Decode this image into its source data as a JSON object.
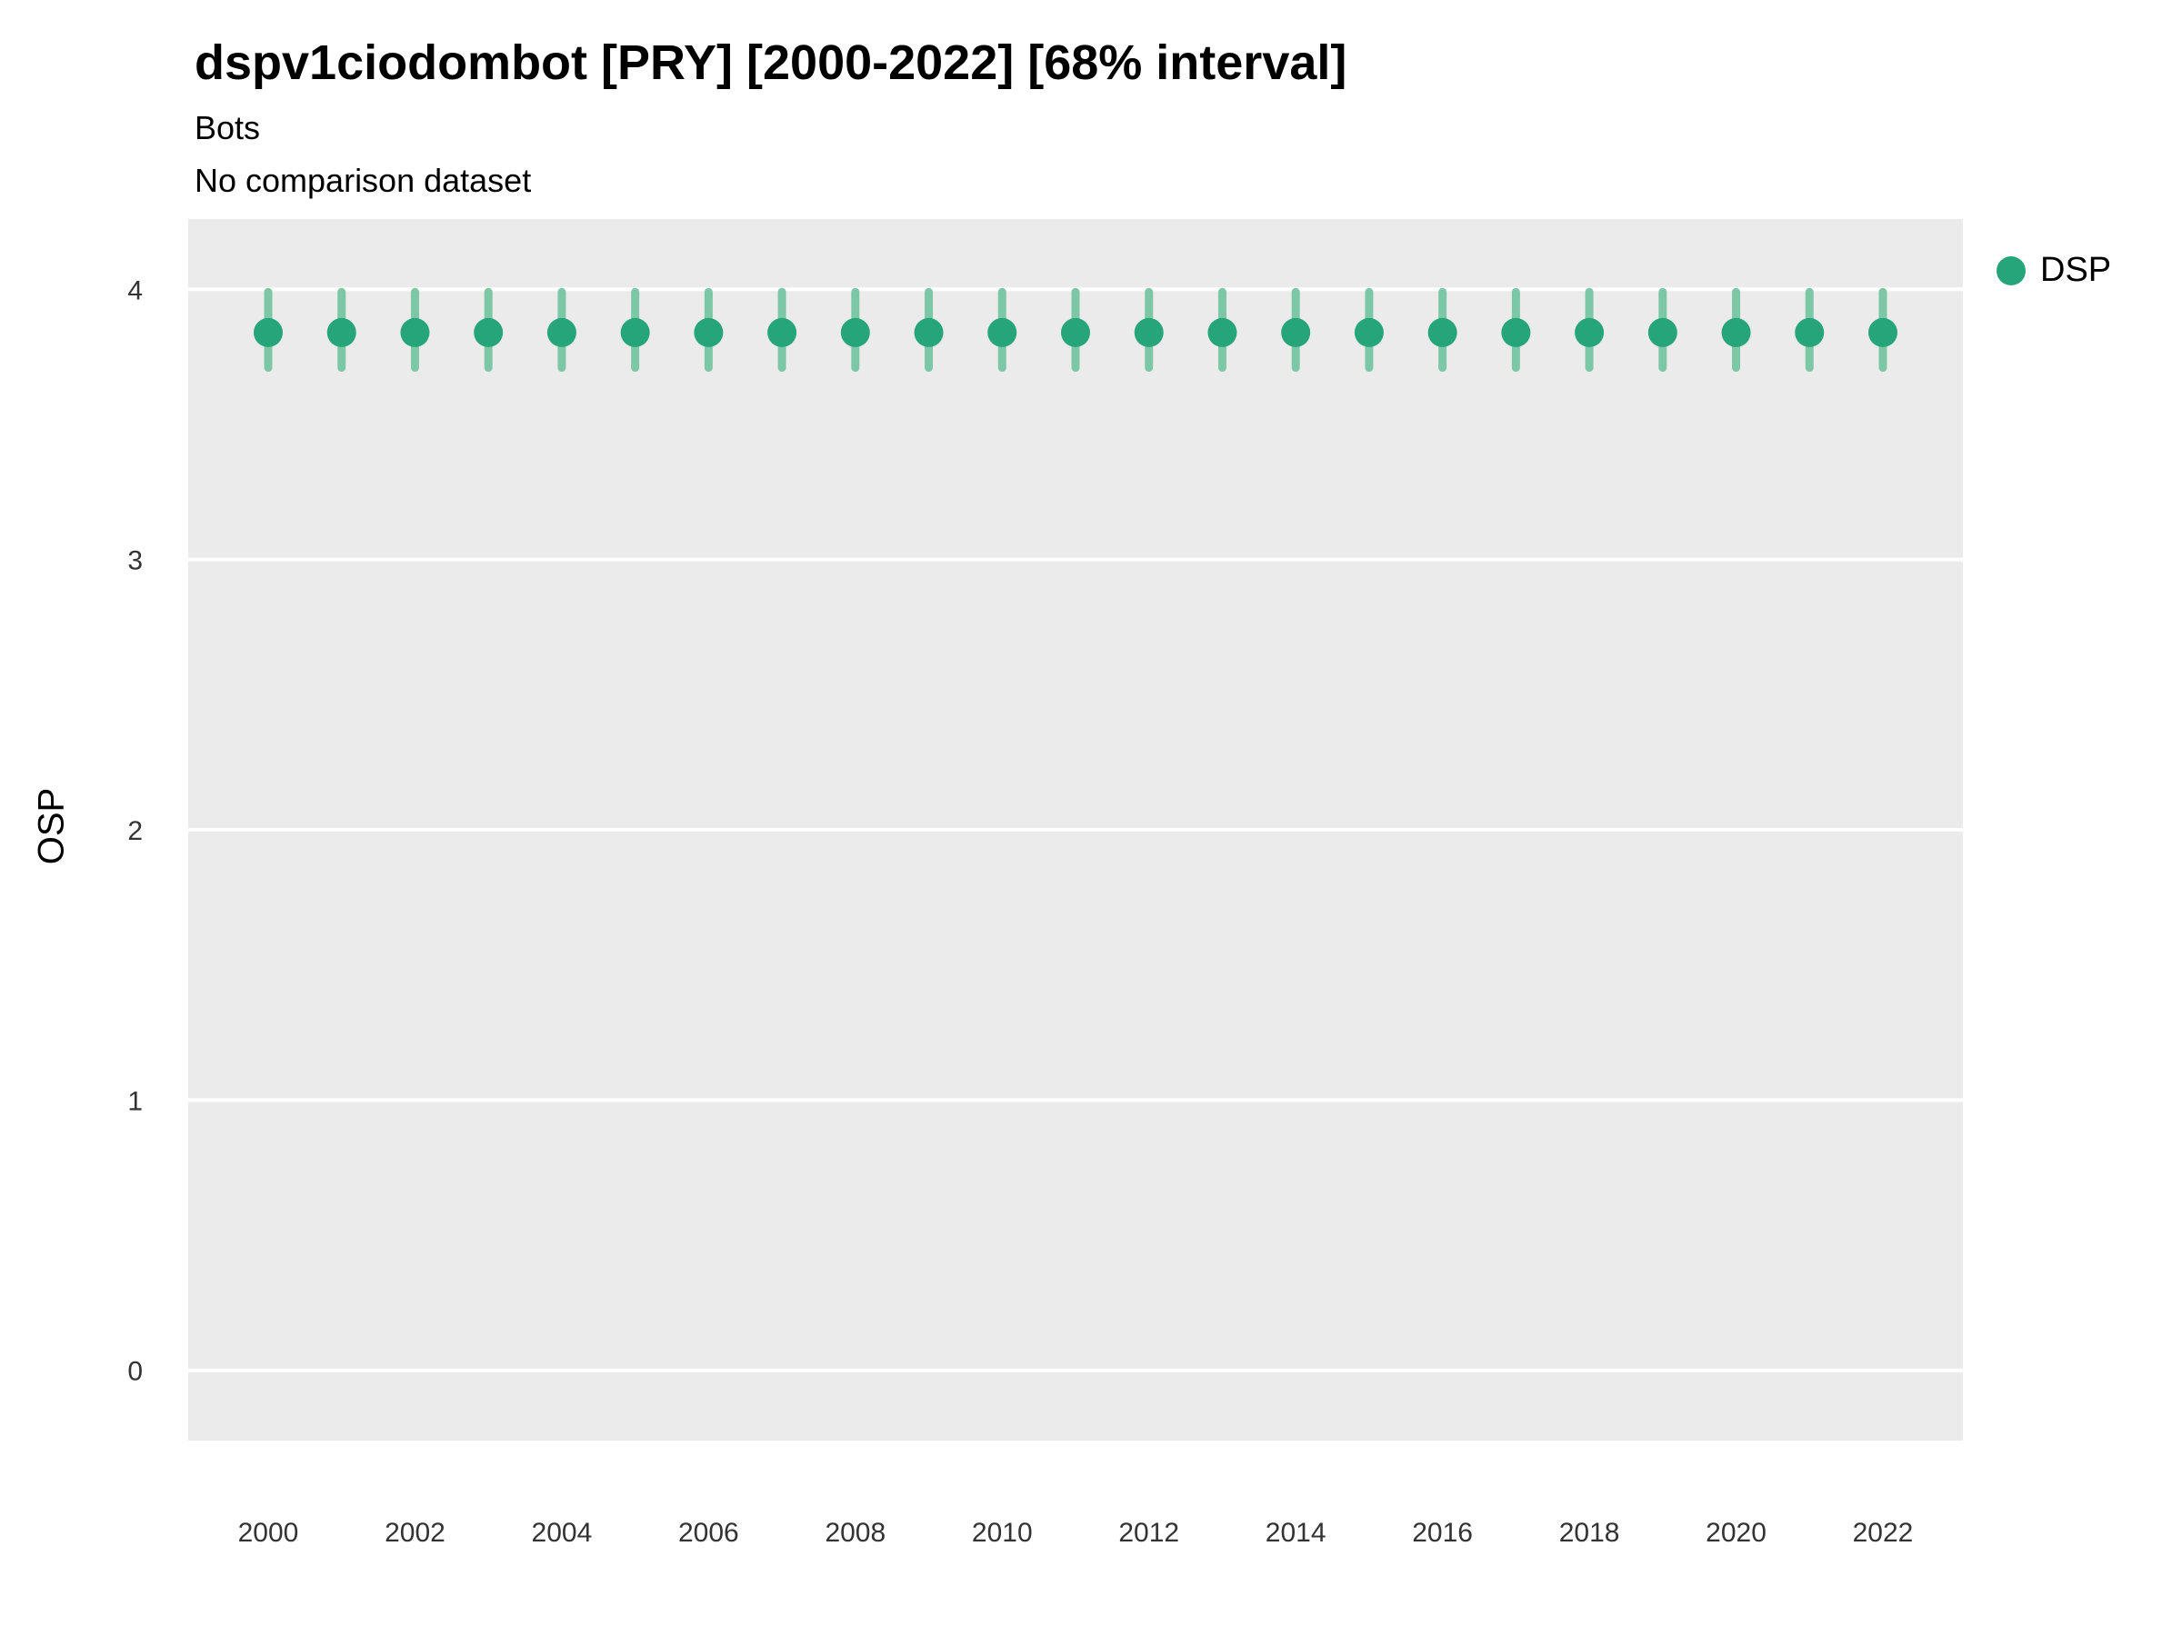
{
  "header": {
    "title": "dspv1ciodombot [PRY] [2000-2022] [68% interval]",
    "subtitle": "Bots",
    "note": "No comparison dataset"
  },
  "legend": {
    "items": [
      {
        "label": "DSP",
        "color": "#27a57a"
      }
    ]
  },
  "chart_data": {
    "type": "pointrange",
    "title": "dspv1ciodombot [PRY] [2000-2022] [68% interval]",
    "subtitle": "Bots",
    "annotation": "No comparison dataset",
    "xlabel": "",
    "ylabel": "OSP",
    "ylim": [
      -0.26,
      4.26
    ],
    "yticks": [
      0,
      1,
      2,
      3,
      4
    ],
    "xtick_labels": [
      2000,
      2002,
      2004,
      2006,
      2008,
      2010,
      2012,
      2014,
      2016,
      2018,
      2020,
      2022
    ],
    "grid": "major horizontal white gridlines on gray panel",
    "legend_position": "right-top",
    "panel_color": "#ebebeb",
    "gridline_color": "#ffffff",
    "axis_text_color": "#333333",
    "interval_label": "68% interval",
    "series": [
      {
        "name": "DSP",
        "color": "#27a57a",
        "interval_color": "#7cc7a5",
        "x": [
          2000,
          2001,
          2002,
          2003,
          2004,
          2005,
          2006,
          2007,
          2008,
          2009,
          2010,
          2011,
          2012,
          2013,
          2014,
          2015,
          2016,
          2017,
          2018,
          2019,
          2020,
          2021,
          2022
        ],
        "est": [
          3.84,
          3.84,
          3.84,
          3.84,
          3.84,
          3.84,
          3.84,
          3.84,
          3.84,
          3.84,
          3.84,
          3.84,
          3.84,
          3.84,
          3.84,
          3.84,
          3.84,
          3.84,
          3.84,
          3.84,
          3.84,
          3.84,
          3.84
        ],
        "lo": [
          3.71,
          3.71,
          3.71,
          3.71,
          3.71,
          3.71,
          3.71,
          3.71,
          3.71,
          3.71,
          3.71,
          3.71,
          3.71,
          3.71,
          3.71,
          3.71,
          3.71,
          3.71,
          3.71,
          3.71,
          3.71,
          3.71,
          3.71
        ],
        "hi": [
          3.99,
          3.99,
          3.99,
          3.99,
          3.99,
          3.99,
          3.99,
          3.99,
          3.99,
          3.99,
          3.99,
          3.99,
          3.99,
          3.99,
          3.99,
          3.99,
          3.99,
          3.99,
          3.99,
          3.99,
          3.99,
          3.99,
          3.99
        ]
      }
    ]
  }
}
